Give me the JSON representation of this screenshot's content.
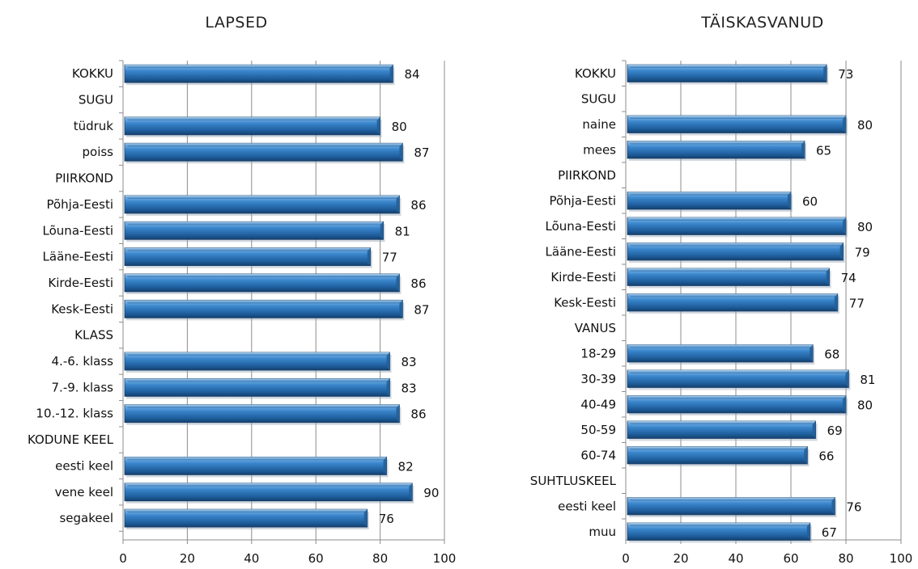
{
  "chart_data": [
    {
      "type": "bar",
      "orientation": "horizontal",
      "title": "LAPSED",
      "categories": [
        "KOKKU",
        "SUGU",
        "tüdruk",
        "poiss",
        "PIIRKOND",
        "Põhja-Eesti",
        "Lõuna-Eesti",
        "Lääne-Eesti",
        "Kirde-Eesti",
        "Kesk-Eesti",
        "KLASS",
        "4.-6. klass",
        "7.-9. klass",
        "10.-12. klass",
        "KODUNE KEEL",
        "eesti keel",
        "vene keel",
        "segakeel"
      ],
      "values": [
        84,
        null,
        80,
        87,
        null,
        86,
        81,
        77,
        86,
        87,
        null,
        83,
        83,
        86,
        null,
        82,
        90,
        76
      ],
      "xlim": [
        0,
        100
      ],
      "xticks": [
        0,
        20,
        40,
        60,
        80,
        100
      ],
      "grid": true,
      "bar_color": "#2e75b6"
    },
    {
      "type": "bar",
      "orientation": "horizontal",
      "title": "TÄISKASVANUD",
      "categories": [
        "KOKKU",
        "SUGU",
        "naine",
        "mees",
        "PIIRKOND",
        "Põhja-Eesti",
        "Lõuna-Eesti",
        "Lääne-Eesti",
        "Kirde-Eesti",
        "Kesk-Eesti",
        "VANUS",
        "18-29",
        "30-39",
        "40-49",
        "50-59",
        "60-74",
        "SUHTLUSKEEL",
        "eesti keel",
        "muu"
      ],
      "values": [
        73,
        null,
        80,
        65,
        null,
        60,
        80,
        79,
        74,
        77,
        null,
        68,
        81,
        80,
        69,
        66,
        null,
        76,
        67
      ],
      "xlim": [
        0,
        100
      ],
      "xticks": [
        0,
        20,
        40,
        60,
        80,
        100
      ],
      "grid": true,
      "bar_color": "#2e75b6"
    }
  ]
}
